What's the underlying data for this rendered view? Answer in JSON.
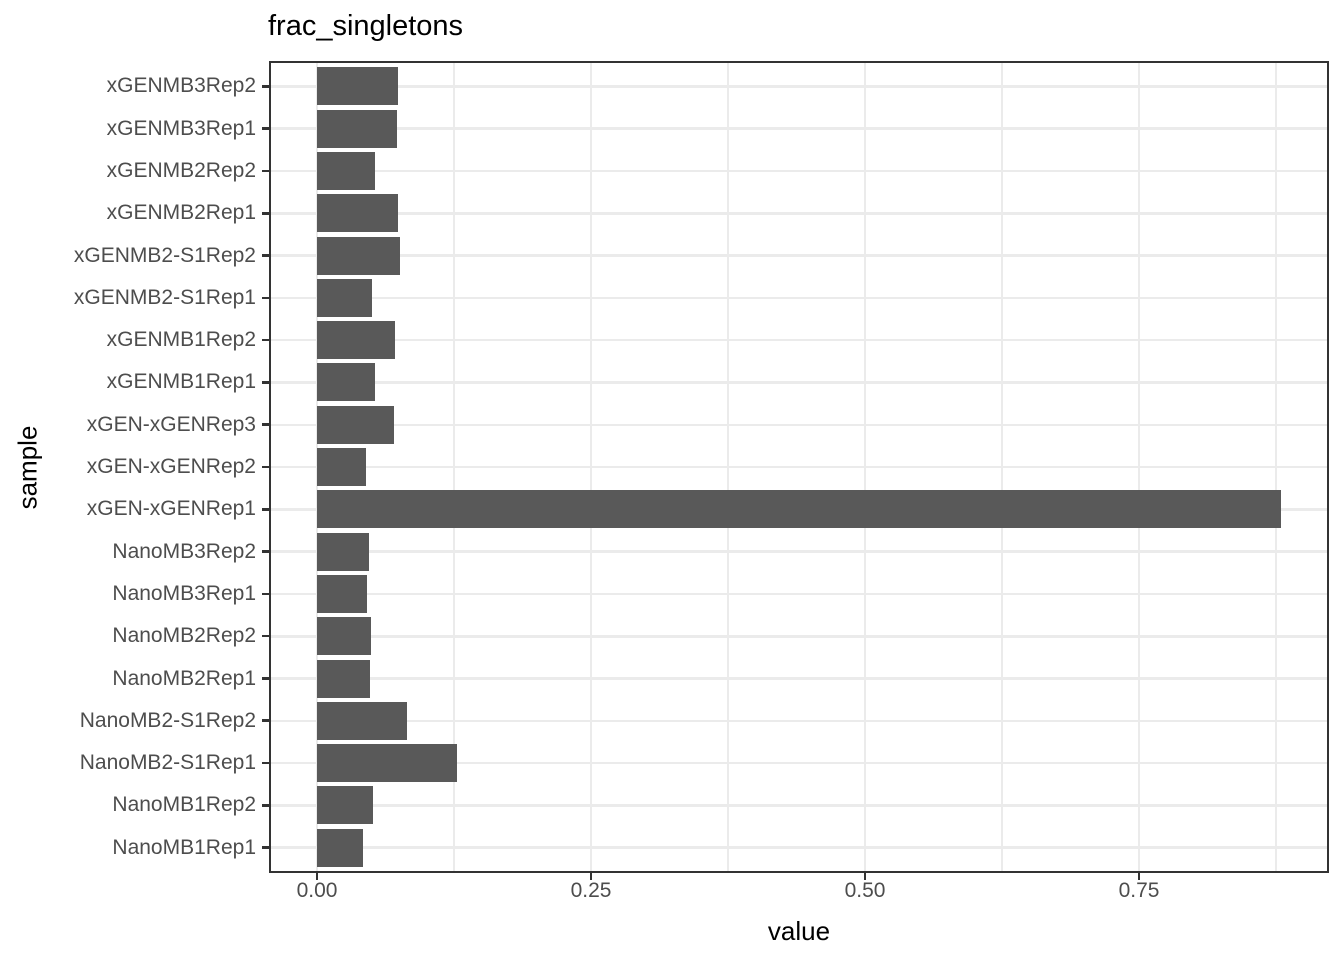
{
  "title": "frac_singletons",
  "x_axis": {
    "label": "value",
    "tick_labels": [
      "0.00",
      "0.25",
      "0.50",
      "0.75"
    ],
    "tick_values": [
      0,
      0.25,
      0.5,
      0.75
    ],
    "minor_tick_values": [
      0.125,
      0.375,
      0.625,
      0.875
    ]
  },
  "y_axis": {
    "label": "sample"
  },
  "colors": {
    "bar": "#595959",
    "grid": "#ebebeb",
    "axis_text": "#4d4d4d",
    "axis_line": "#333333",
    "title_text": "#000000",
    "background": "#ffffff"
  },
  "chart_data": {
    "type": "bar",
    "orientation": "horizontal",
    "title": "frac_singletons",
    "xlabel": "value",
    "ylabel": "sample",
    "xlim": [
      -0.044,
      0.923
    ],
    "grid": true,
    "legend": false,
    "categories_top_to_bottom": [
      "xGENMB3Rep2",
      "xGENMB3Rep1",
      "xGENMB2Rep2",
      "xGENMB2Rep1",
      "xGENMB2-S1Rep2",
      "xGENMB2-S1Rep1",
      "xGENMB1Rep2",
      "xGENMB1Rep1",
      "xGEN-xGENRep3",
      "xGEN-xGENRep2",
      "xGEN-xGENRep1",
      "NanoMB3Rep2",
      "NanoMB3Rep1",
      "NanoMB2Rep2",
      "NanoMB2Rep1",
      "NanoMB2-S1Rep2",
      "NanoMB2-S1Rep1",
      "NanoMB1Rep2",
      "NanoMB1Rep1"
    ],
    "values": [
      0.074,
      0.073,
      0.053,
      0.074,
      0.076,
      0.05,
      0.071,
      0.053,
      0.07,
      0.045,
      0.88,
      0.047,
      0.046,
      0.049,
      0.048,
      0.082,
      0.128,
      0.051,
      0.042
    ]
  }
}
